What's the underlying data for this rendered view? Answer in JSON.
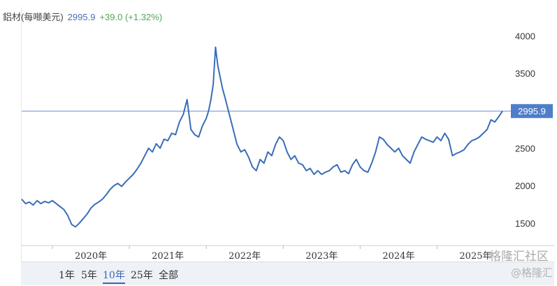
{
  "header": {
    "title": "鋁材(每噸美元)",
    "price": "2995.9",
    "change": "+39.0 (+1.32%)"
  },
  "range_buttons": [
    "1年",
    "5年",
    "10年",
    "25年",
    "全部"
  ],
  "range_active": "10年",
  "watermark": "格隆汇社区",
  "watermark_sub": "@格隆汇",
  "colors": {
    "line": "#3a6db8",
    "reference_line": "#6b8fd0",
    "label_bg": "#4f7ec9",
    "grid": "#eeeeee"
  },
  "chart_data": {
    "type": "line",
    "title": "鋁材(每噸美元)",
    "ylim": [
      1200,
      4200
    ],
    "yticks": [
      1500,
      2000,
      2500,
      3000,
      3500,
      4000
    ],
    "xticks": [
      "2020年",
      "2021年",
      "2022年",
      "2023年",
      "2024年",
      "2025年"
    ],
    "last_value_label": "2995.9",
    "grid": false,
    "series": [
      {
        "x": [
          2019.6,
          2019.65,
          2019.7,
          2019.75,
          2019.8,
          2019.85,
          2019.9,
          2019.95,
          2020.0,
          2020.05,
          2020.1,
          2020.15,
          2020.2,
          2020.25,
          2020.3,
          2020.35,
          2020.4,
          2020.45,
          2020.5,
          2020.55,
          2020.6,
          2020.65,
          2020.7,
          2020.75,
          2020.8,
          2020.85,
          2020.9,
          2020.95,
          2021.0,
          2021.05,
          2021.1,
          2021.15,
          2021.2,
          2021.25,
          2021.3,
          2021.35,
          2021.4,
          2021.45,
          2021.5,
          2021.55,
          2021.6,
          2021.65,
          2021.7,
          2021.75,
          2021.8,
          2021.85,
          2021.9,
          2021.95,
          2022.0,
          2022.03,
          2022.06,
          2022.09,
          2022.12,
          2022.15,
          2022.18,
          2022.21,
          2022.25,
          2022.3,
          2022.35,
          2022.4,
          2022.45,
          2022.5,
          2022.55,
          2022.6,
          2022.65,
          2022.7,
          2022.75,
          2022.8,
          2022.85,
          2022.9,
          2022.95,
          2023.0,
          2023.05,
          2023.1,
          2023.15,
          2023.2,
          2023.25,
          2023.3,
          2023.35,
          2023.4,
          2023.45,
          2023.5,
          2023.55,
          2023.6,
          2023.65,
          2023.7,
          2023.75,
          2023.8,
          2023.85,
          2023.9,
          2023.95,
          2024.0,
          2024.05,
          2024.1,
          2024.15,
          2024.2,
          2024.25,
          2024.3,
          2024.35,
          2024.4,
          2024.45,
          2024.5,
          2024.55,
          2024.6,
          2024.65,
          2024.7,
          2024.75,
          2024.8,
          2024.85,
          2024.9,
          2024.95,
          2025.0,
          2025.05,
          2025.1,
          2025.15,
          2025.2,
          2025.25,
          2025.3,
          2025.35,
          2025.4,
          2025.45,
          2025.5,
          2025.55,
          2025.6,
          2025.65,
          2025.7,
          2025.75,
          2025.8,
          2025.85
        ],
        "y": [
          1820,
          1760,
          1780,
          1740,
          1800,
          1760,
          1790,
          1770,
          1800,
          1760,
          1720,
          1680,
          1600,
          1480,
          1450,
          1500,
          1560,
          1620,
          1700,
          1750,
          1780,
          1820,
          1880,
          1950,
          2000,
          2030,
          1990,
          2050,
          2100,
          2150,
          2220,
          2300,
          2400,
          2500,
          2450,
          2560,
          2500,
          2620,
          2600,
          2700,
          2680,
          2850,
          2950,
          3150,
          2750,
          2680,
          2650,
          2800,
          2900,
          3000,
          3150,
          3350,
          3850,
          3600,
          3450,
          3300,
          3150,
          2950,
          2750,
          2550,
          2450,
          2480,
          2380,
          2250,
          2200,
          2350,
          2300,
          2450,
          2400,
          2550,
          2650,
          2600,
          2450,
          2350,
          2400,
          2300,
          2280,
          2200,
          2230,
          2150,
          2200,
          2150,
          2180,
          2200,
          2250,
          2280,
          2180,
          2200,
          2160,
          2280,
          2350,
          2250,
          2200,
          2180,
          2300,
          2450,
          2650,
          2620,
          2550,
          2500,
          2450,
          2500,
          2400,
          2350,
          2300,
          2450,
          2550,
          2650,
          2620,
          2600,
          2580,
          2650,
          2600,
          2700,
          2620,
          2400,
          2430,
          2450,
          2480,
          2550,
          2600,
          2620,
          2650,
          2700,
          2750,
          2880,
          2850,
          2920,
          2995.9
        ]
      }
    ]
  }
}
